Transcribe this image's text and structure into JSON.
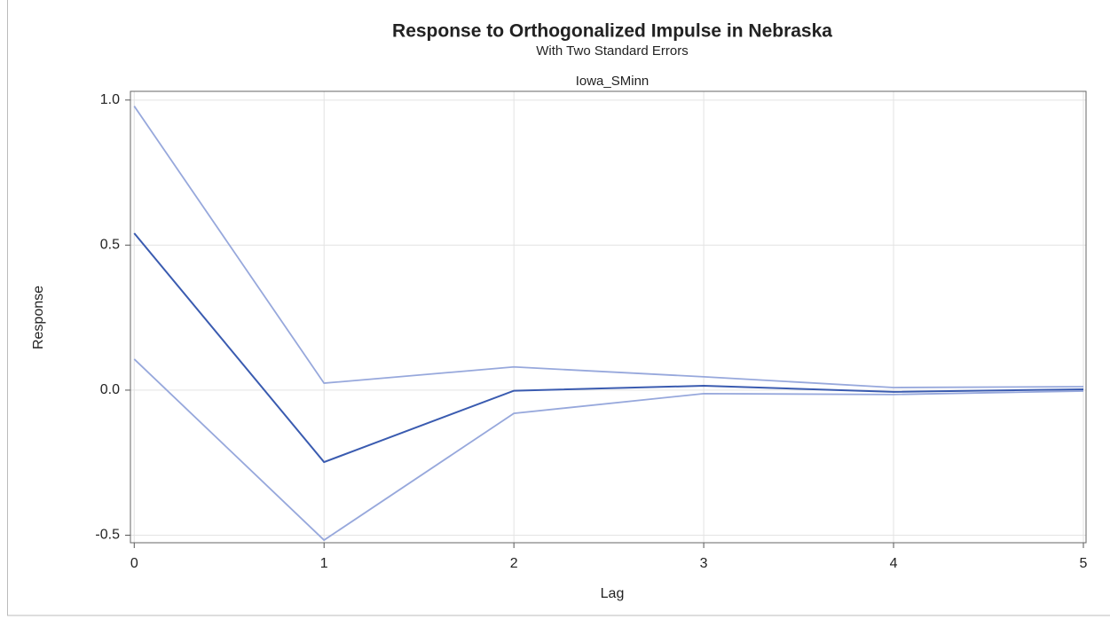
{
  "chart_data": {
    "type": "line",
    "title": "Response to Orthogonalized Impulse in Nebraska",
    "subtitle": "With Two Standard Errors",
    "panel_label": "Iowa_SMinn",
    "xlabel": "Lag",
    "ylabel": "Response",
    "x": [
      0,
      1,
      2,
      3,
      4,
      5
    ],
    "series": [
      {
        "color": "#3a5bb0",
        "values": [
          0.541,
          -0.248,
          -0.002,
          0.015,
          -0.006,
          0.003
        ]
      },
      {
        "color": "#97a8dc",
        "values": [
          0.979,
          0.024,
          0.08,
          0.046,
          0.009,
          0.012
        ]
      },
      {
        "color": "#97a8dc",
        "values": [
          0.107,
          -0.517,
          -0.08,
          -0.012,
          -0.015,
          -0.003
        ]
      }
    ],
    "xlim": [
      -0.02,
      5.014
    ],
    "ylim": [
      -0.526,
      1.03
    ],
    "xticks": [
      0,
      1,
      2,
      3,
      4,
      5
    ],
    "yticks": [
      {
        "value": -0.5,
        "label": "-0.5"
      },
      {
        "value": 0,
        "label": "0.0"
      },
      {
        "value": 0.5,
        "label": "0.5"
      },
      {
        "value": 1,
        "label": "1.0"
      }
    ],
    "grid": true
  }
}
